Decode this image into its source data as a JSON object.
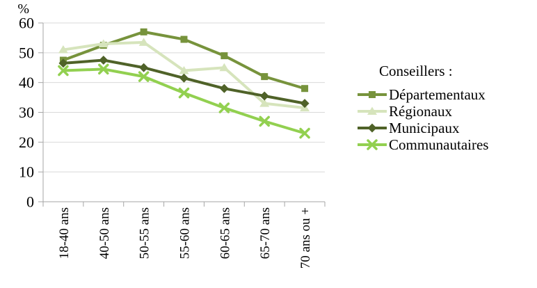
{
  "figure": {
    "background": "#FFFFFF"
  },
  "chart_data": {
    "type": "line",
    "title": "",
    "y_axis": {
      "unit_label": "%",
      "min": 0,
      "max": 60,
      "tick_step": 10,
      "ticks": [
        0,
        10,
        20,
        30,
        40,
        50,
        60
      ]
    },
    "categories": [
      "18-40 ans",
      "40-50 ans",
      "50-55 ans",
      "55-60 ans",
      "60-65 ans",
      "65-70 ans",
      "70 ans ou +"
    ],
    "series": [
      {
        "name": "Départementaux",
        "marker": "square",
        "color": "#77933C",
        "values": [
          47.5,
          52.5,
          57,
          54.5,
          49,
          42,
          38
        ]
      },
      {
        "name": "Régionaux",
        "marker": "triangle",
        "color": "#D6E4BC",
        "values": [
          51,
          53,
          53.5,
          44,
          45,
          33,
          31.5
        ]
      },
      {
        "name": "Municipaux",
        "marker": "diamond",
        "color": "#4F6228",
        "values": [
          46.5,
          47.5,
          45,
          41.5,
          38,
          35.5,
          33
        ]
      },
      {
        "name": "Communautaires",
        "marker": "x",
        "color": "#92D050",
        "values": [
          44,
          44.5,
          42,
          36.5,
          31.5,
          27,
          23
        ]
      }
    ],
    "legend": {
      "title": "Conseillers :",
      "position": "right"
    },
    "grid": "horizontal",
    "grid_color": "#D9D9D9",
    "axis_color": "#A6A6A6"
  }
}
